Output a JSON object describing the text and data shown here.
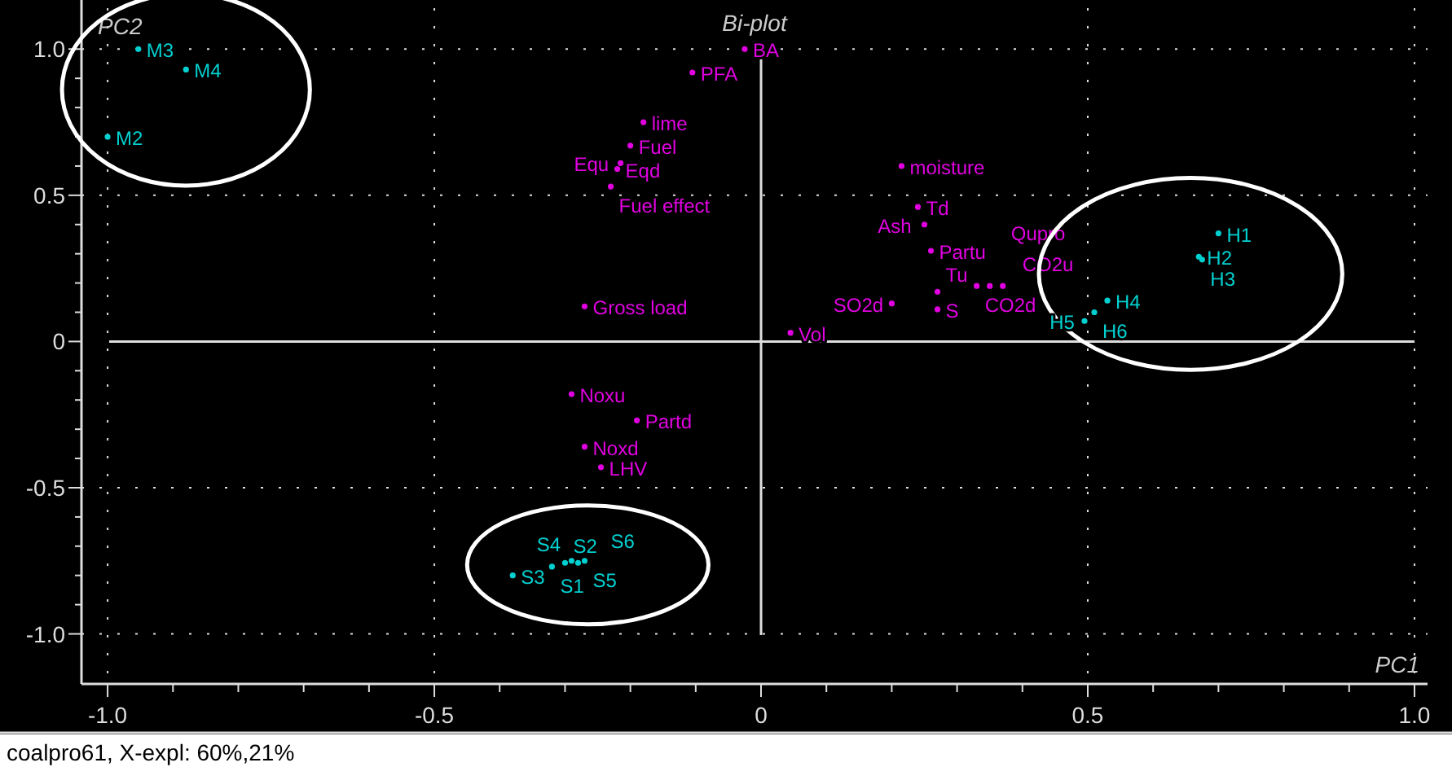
{
  "chart_data": {
    "type": "scatter",
    "title": "Bi-plot",
    "xlabel": "PC1",
    "ylabel": "PC2",
    "annotations": [
      "coalpro61, X-expl: 60%,21%"
    ],
    "xlim": [
      -1.04,
      1.02
    ],
    "ylim": [
      -1.16,
      1.14
    ],
    "xticks": [
      {
        "value": -1,
        "label": "-1.0"
      },
      {
        "value": -0.9,
        "label": null
      },
      {
        "value": -0.8,
        "label": null
      },
      {
        "value": -0.7,
        "label": null
      },
      {
        "value": -0.6,
        "label": null
      },
      -0.5,
      {
        "value": -0.4,
        "label": null
      },
      {
        "value": -0.3,
        "label": null
      },
      {
        "value": -0.2,
        "label": null
      },
      {
        "value": -0.1,
        "label": null
      },
      0,
      {
        "value": 0.1,
        "label": null
      },
      {
        "value": 0.2,
        "label": null
      },
      {
        "value": 0.3,
        "label": null
      },
      {
        "value": 0.4,
        "label": null
      },
      0.5,
      {
        "value": 0.6,
        "label": null
      },
      {
        "value": 0.7,
        "label": null
      },
      {
        "value": 0.8,
        "label": null
      },
      {
        "value": 0.9,
        "label": null
      },
      {
        "value": 1,
        "label": "1.0"
      }
    ],
    "yticks": [
      {
        "value": -1,
        "label": "-1.0"
      },
      {
        "value": -0.9,
        "label": null
      },
      {
        "value": -0.8,
        "label": null
      },
      {
        "value": -0.7,
        "label": null
      },
      {
        "value": -0.6,
        "label": null
      },
      -0.5,
      {
        "value": -0.4,
        "label": null
      },
      {
        "value": -0.3,
        "label": null
      },
      {
        "value": -0.2,
        "label": null
      },
      {
        "value": -0.1,
        "label": null
      },
      0,
      {
        "value": 0.1,
        "label": null
      },
      {
        "value": 0.2,
        "label": null
      },
      {
        "value": 0.3,
        "label": null
      },
      {
        "value": 0.4,
        "label": null
      },
      0.5,
      {
        "value": 0.6,
        "label": null
      },
      {
        "value": 0.7,
        "label": null
      },
      {
        "value": 0.8,
        "label": null
      },
      {
        "value": 0.9,
        "label": null
      },
      {
        "value": 1,
        "label": "1.0"
      }
    ],
    "grid": true,
    "marker": "circle",
    "series": [
      {
        "color": "#e000e0",
        "x": [
          -0.025,
          -0.105,
          -0.18,
          -0.2,
          -0.22,
          -0.215,
          -0.23,
          -0.27,
          0.215,
          0.24,
          0.25,
          0.26,
          0.2,
          0.27,
          0.27,
          0.33,
          0.35,
          0.37,
          0.045,
          -0.29,
          -0.19,
          -0.27,
          -0.245
        ],
        "values": [
          1.0,
          0.92,
          0.75,
          0.67,
          0.59,
          0.61,
          0.53,
          0.12,
          0.6,
          0.46,
          0.4,
          0.31,
          0.13,
          0.11,
          0.17,
          0.19,
          0.19,
          0.19,
          0.03,
          -0.18,
          -0.27,
          -0.36,
          -0.43
        ],
        "value_labels": [
          "BA",
          "PFA",
          "lime",
          "Fuel",
          "Eqd",
          "Equ",
          "Fuel effect",
          "Gross load",
          "moisture",
          "Td",
          "Ash",
          "Partu",
          "SO2d",
          "S",
          "Tu",
          "CO2d",
          "CO2u",
          "Qupro",
          "Vol",
          "Noxu",
          "Partd",
          "Noxd",
          "LHV"
        ]
      },
      {
        "color": "#00d0d0",
        "x": [
          -0.953,
          -0.88,
          -1.0
        ],
        "values": [
          1.0,
          0.93,
          0.7
        ],
        "value_labels": [
          "M3",
          "M4",
          "M2"
        ]
      },
      {
        "color": "#00d0d0",
        "x": [
          0.7,
          0.67,
          0.675,
          0.53,
          0.51,
          0.495
        ],
        "values": [
          0.37,
          0.29,
          0.28,
          0.14,
          0.1,
          0.07
        ],
        "value_labels": [
          "H1",
          "H2",
          "H3",
          "H4",
          "H6",
          "H5"
        ]
      },
      {
        "color": "#00d0d0",
        "x": [
          -0.38,
          -0.32,
          -0.3,
          -0.29,
          -0.28,
          -0.27
        ],
        "values": [
          -0.8,
          -0.77,
          -0.757,
          -0.75,
          -0.757,
          -0.75
        ],
        "value_labels": [
          "S3",
          "S1",
          "S2",
          "S4",
          "S6",
          "S5"
        ]
      }
    ]
  }
}
